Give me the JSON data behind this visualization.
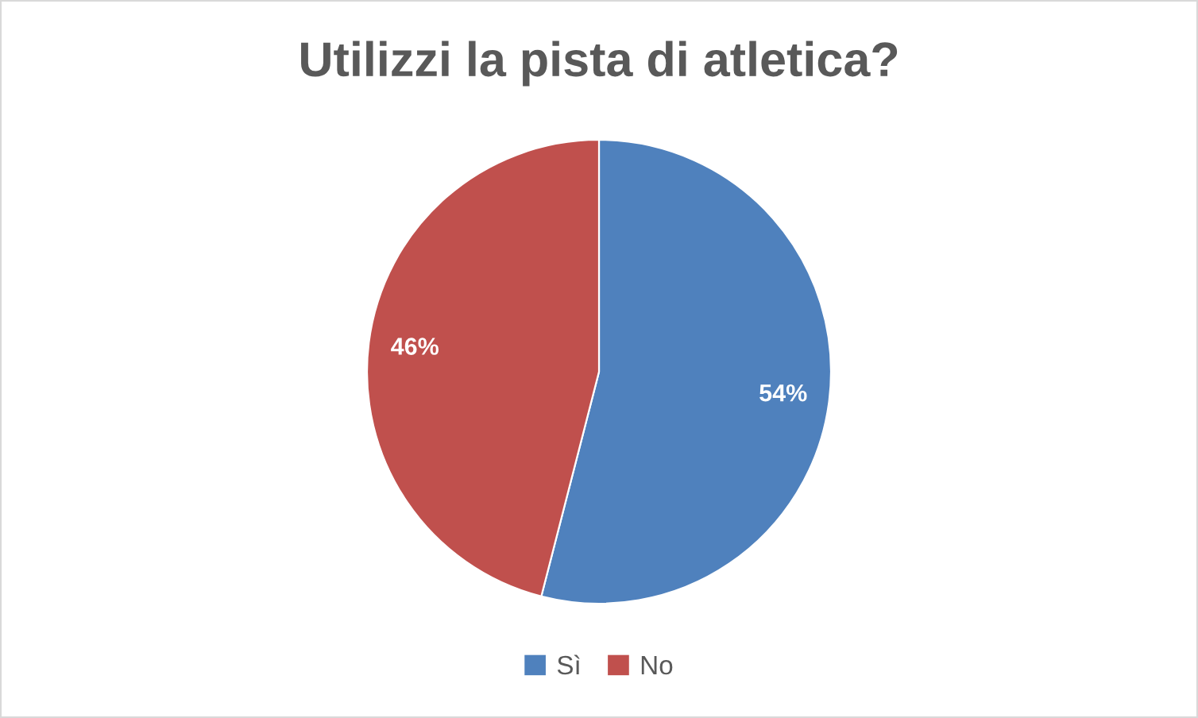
{
  "chart_data": {
    "type": "pie",
    "title": "Utilizzi la pista di atletica?",
    "categories": [
      "Sì",
      "No"
    ],
    "values": [
      54,
      46
    ],
    "colors": [
      "#4f81bd",
      "#c0504d"
    ],
    "value_labels": [
      "54%",
      "46%"
    ],
    "legend": "bottom"
  }
}
